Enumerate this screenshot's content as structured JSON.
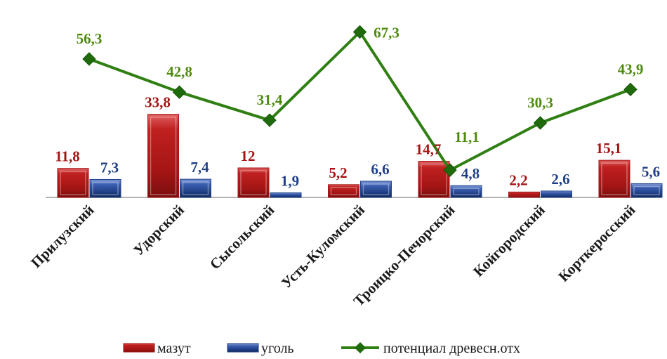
{
  "chart_data": {
    "type": "bar",
    "categories": [
      "Прилузский",
      "Удорский",
      "Сысольский",
      "Усть-Куломский",
      "Троицко-Печорский",
      "Койгородский",
      "Корткеросский"
    ],
    "series": [
      {
        "name": "мазут",
        "kind": "bar",
        "values": [
          11.8,
          33.8,
          12,
          5.2,
          14.7,
          2.2,
          15.1
        ],
        "labels": [
          "11,8",
          "33,8",
          "12",
          "5,2",
          "14,7",
          "2,2",
          "15,1"
        ],
        "color": "#a31515",
        "label_color": "#a31515"
      },
      {
        "name": "уголь",
        "kind": "bar",
        "values": [
          7.3,
          7.4,
          1.9,
          6.6,
          4.8,
          2.6,
          5.6
        ],
        "labels": [
          "7,3",
          "7,4",
          "1,9",
          "6,6",
          "4,8",
          "2,6",
          "5,6"
        ],
        "color": "#1f3f86",
        "label_color": "#1f3f86"
      },
      {
        "name": "потенциал древесн.отх",
        "kind": "line",
        "values": [
          56.3,
          42.8,
          31.4,
          67.3,
          11.1,
          30.3,
          43.9
        ],
        "labels": [
          "56,3",
          "42,8",
          "31,4",
          "67,3",
          "11,1",
          "30,3",
          "43,9"
        ],
        "color": "#2f7f12",
        "label_color": "#4f8a10",
        "marker": "diamond"
      }
    ],
    "legend_position": "bottom",
    "grid": false
  }
}
